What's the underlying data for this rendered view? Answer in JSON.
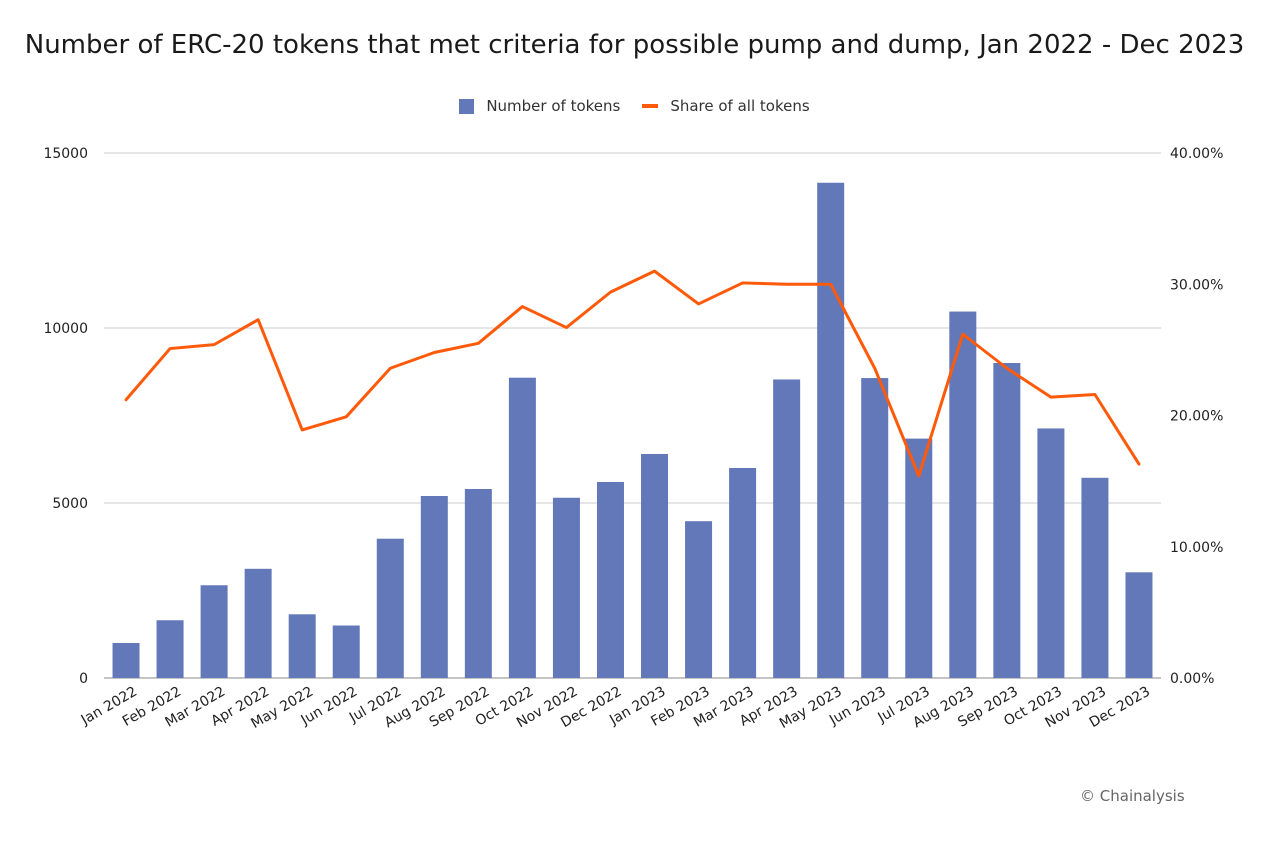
{
  "chart_data": {
    "type": "bar",
    "title": "Number of ERC-20 tokens that met criteria for possible pump and dump, Jan 2022 - Dec 2023",
    "categories": [
      "Jan 2022",
      "Feb 2022",
      "Mar 2022",
      "Apr 2022",
      "May 2022",
      "Jun 2022",
      "Jul 2022",
      "Aug 2022",
      "Sep 2022",
      "Oct 2022",
      "Nov 2022",
      "Dec 2022",
      "Jan 2023",
      "Feb 2023",
      "Mar 2023",
      "Apr 2023",
      "May 2023",
      "Jun 2023",
      "Jul 2023",
      "Aug 2023",
      "Sep 2023",
      "Oct 2023",
      "Nov 2023",
      "Dec 2023"
    ],
    "series": [
      {
        "name": "Number of tokens",
        "type": "bar",
        "axis": "left",
        "color": "#6378b9",
        "values": [
          1000,
          1650,
          2650,
          3120,
          1820,
          1500,
          3980,
          5200,
          5400,
          8580,
          5150,
          5600,
          6400,
          4480,
          6000,
          8530,
          14150,
          8570,
          6840,
          10470,
          9000,
          7130,
          5720,
          3020
        ]
      },
      {
        "name": "Share of all tokens",
        "type": "line",
        "axis": "right",
        "color": "#ff5a0a",
        "values": [
          21.2,
          25.1,
          25.4,
          27.3,
          18.9,
          19.9,
          23.6,
          24.8,
          25.5,
          28.3,
          26.7,
          29.4,
          31.0,
          28.5,
          30.1,
          30.0,
          30.0,
          23.6,
          15.4,
          26.2,
          23.6,
          21.4,
          21.6,
          16.3
        ]
      }
    ],
    "y_left": {
      "min": 0,
      "max": 15000,
      "ticks": [
        "0",
        "5000",
        "10000",
        "15000"
      ]
    },
    "y_right": {
      "min": 0,
      "max": 40,
      "ticks": [
        "0.00%",
        "10.00%",
        "20.00%",
        "30.00%",
        "40.00%"
      ]
    },
    "grid": true,
    "legend": "top-center"
  },
  "credit": "© Chainalysis"
}
